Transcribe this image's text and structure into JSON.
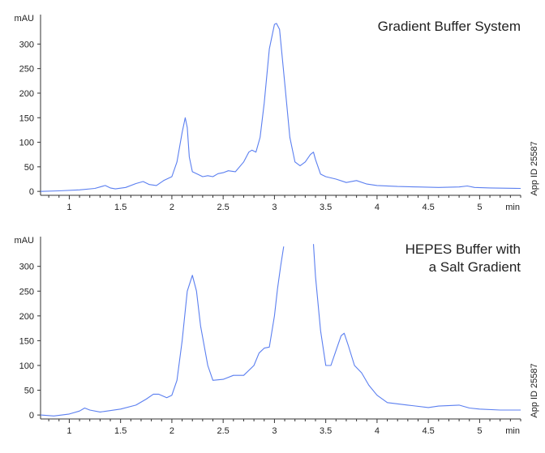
{
  "chart_data": [
    {
      "type": "line",
      "title_lines": [
        "Gradient Buffer System"
      ],
      "xlabel": "min",
      "ylabel": "mAU",
      "side_note": "App ID 25587",
      "xlim": [
        0.72,
        5.4
      ],
      "ylim": [
        -8,
        360
      ],
      "x_ticks": [
        1,
        1.5,
        2,
        2.5,
        3,
        3.5,
        4,
        4.5,
        5
      ],
      "x_tick_labels": [
        "1",
        "1.5",
        "2",
        "2.5",
        "3",
        "3.5",
        "4",
        "4.5",
        "5"
      ],
      "y_ticks": [
        0,
        50,
        100,
        150,
        200,
        250,
        300
      ],
      "y_tick_labels": [
        "0",
        "50",
        "100",
        "150",
        "200",
        "250",
        "300"
      ],
      "grid": false,
      "color": "#5b7ff0",
      "series": [
        {
          "x": [
            0.72,
            0.9,
            1.1,
            1.25,
            1.35,
            1.4,
            1.45,
            1.55,
            1.65,
            1.72,
            1.78,
            1.85,
            1.92,
            2.0,
            2.05,
            2.1,
            2.13,
            2.15,
            2.17,
            2.2,
            2.25,
            2.3,
            2.35,
            2.4,
            2.45,
            2.5,
            2.55,
            2.62,
            2.7,
            2.75,
            2.78,
            2.82,
            2.86,
            2.9,
            2.95,
            3.0,
            3.02,
            3.05,
            3.1,
            3.15,
            3.2,
            3.25,
            3.3,
            3.35,
            3.38,
            3.4,
            3.45,
            3.5,
            3.6,
            3.7,
            3.8,
            3.9,
            4.0,
            4.2,
            4.4,
            4.6,
            4.8,
            4.88,
            4.95,
            5.1,
            5.4
          ],
          "y": [
            0,
            1,
            3,
            6,
            12,
            7,
            5,
            8,
            16,
            20,
            14,
            12,
            22,
            30,
            60,
            120,
            150,
            130,
            70,
            40,
            35,
            30,
            32,
            30,
            36,
            38,
            42,
            40,
            60,
            80,
            84,
            80,
            110,
            180,
            290,
            340,
            342,
            330,
            220,
            110,
            60,
            52,
            60,
            75,
            80,
            65,
            35,
            30,
            25,
            18,
            22,
            15,
            12,
            10,
            9,
            8,
            9,
            11,
            8,
            7,
            6
          ]
        }
      ]
    },
    {
      "type": "line",
      "title_lines": [
        "HEPES Buffer with",
        "a Salt Gradient"
      ],
      "xlabel": "min",
      "ylabel": "mAU",
      "side_note": "App ID 25587",
      "xlim": [
        0.72,
        5.4
      ],
      "ylim": [
        -8,
        360
      ],
      "x_ticks": [
        1,
        1.5,
        2,
        2.5,
        3,
        3.5,
        4,
        4.5,
        5
      ],
      "x_tick_labels": [
        "1",
        "1.5",
        "2",
        "2.5",
        "3",
        "3.5",
        "4",
        "4.5",
        "5"
      ],
      "y_ticks": [
        0,
        50,
        100,
        150,
        200,
        250,
        300
      ],
      "y_tick_labels": [
        "0",
        "50",
        "100",
        "150",
        "200",
        "250",
        "300"
      ],
      "grid": false,
      "color": "#5b7ff0",
      "series": [
        {
          "x": [
            0.72,
            0.85,
            1.0,
            1.1,
            1.15,
            1.2,
            1.3,
            1.5,
            1.65,
            1.75,
            1.82,
            1.87,
            1.95,
            2.0,
            2.05,
            2.1,
            2.15,
            2.2,
            2.24,
            2.28,
            2.35,
            2.4,
            2.5,
            2.6,
            2.7,
            2.8,
            2.85,
            2.9,
            2.95,
            3.0,
            3.03,
            3.06,
            3.09
          ],
          "y": [
            0,
            -2,
            2,
            8,
            14,
            10,
            6,
            12,
            20,
            32,
            42,
            42,
            35,
            40,
            70,
            150,
            250,
            282,
            250,
            180,
            100,
            70,
            72,
            80,
            80,
            100,
            125,
            135,
            137,
            200,
            255,
            300,
            340
          ]
        },
        {
          "x": [
            3.38,
            3.4,
            3.45,
            3.5,
            3.55,
            3.6,
            3.65,
            3.68,
            3.72,
            3.78,
            3.85,
            3.92,
            4.0,
            4.1,
            4.3,
            4.5,
            4.6,
            4.8,
            4.9,
            5.0,
            5.2,
            5.4
          ],
          "y": [
            345,
            280,
            170,
            100,
            100,
            130,
            160,
            165,
            140,
            100,
            85,
            60,
            40,
            25,
            20,
            15,
            18,
            20,
            14,
            12,
            10,
            10
          ]
        }
      ]
    }
  ]
}
